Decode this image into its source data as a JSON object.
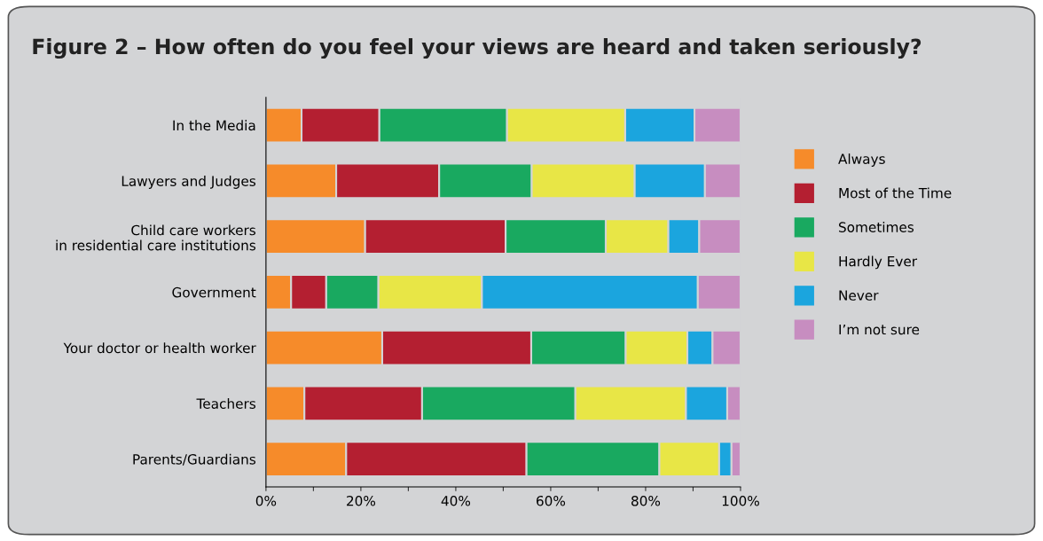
{
  "chart_data": {
    "type": "bar",
    "orientation": "horizontal",
    "stacked": true,
    "title": "Figure 2 – How often do you feel your views are heard and taken seriously?",
    "categories": [
      "In the Media",
      "Lawyers and Judges",
      "Child care workers\nin residential care institutions",
      "Government",
      "Your doctor or health worker",
      "Teachers",
      "Parents/Guardians"
    ],
    "series": [
      {
        "name": "Always",
        "color": "#f68b2a",
        "values": [
          7.5,
          14.8,
          20.9,
          5.3,
          24.5,
          8.1,
          16.9
        ]
      },
      {
        "name": "Most of the Time",
        "color": "#b41f31",
        "values": [
          16.4,
          21.7,
          29.6,
          7.4,
          31.4,
          24.8,
          38.0
        ]
      },
      {
        "name": "Sometimes",
        "color": "#19a960",
        "values": [
          26.9,
          19.5,
          21.1,
          11.0,
          19.9,
          32.3,
          28.0
        ]
      },
      {
        "name": "Hardly Ever",
        "color": "#e8e646",
        "values": [
          24.9,
          21.7,
          13.2,
          21.8,
          13.0,
          23.3,
          12.6
        ]
      },
      {
        "name": "Never",
        "color": "#1ba5de",
        "values": [
          14.6,
          14.8,
          6.5,
          45.5,
          5.3,
          8.7,
          2.6
        ]
      },
      {
        "name": "I’m not sure",
        "color": "#c78dc0",
        "values": [
          9.7,
          7.5,
          8.7,
          9.0,
          5.9,
          2.8,
          1.9
        ]
      }
    ],
    "xlim": [
      0,
      100
    ],
    "xticks": [
      {
        "value": 0,
        "label": "0%"
      },
      {
        "value": 10,
        "label": null
      },
      {
        "value": 20,
        "label": "20%"
      },
      {
        "value": 30,
        "label": null
      },
      {
        "value": 40,
        "label": "40%"
      },
      {
        "value": 50,
        "label": null
      },
      {
        "value": 60,
        "label": "60%"
      },
      {
        "value": 70,
        "label": null
      },
      {
        "value": 80,
        "label": "80%"
      },
      {
        "value": 90,
        "label": null
      },
      {
        "value": 100,
        "label": "100%"
      }
    ],
    "grid": false,
    "legend": "right"
  }
}
